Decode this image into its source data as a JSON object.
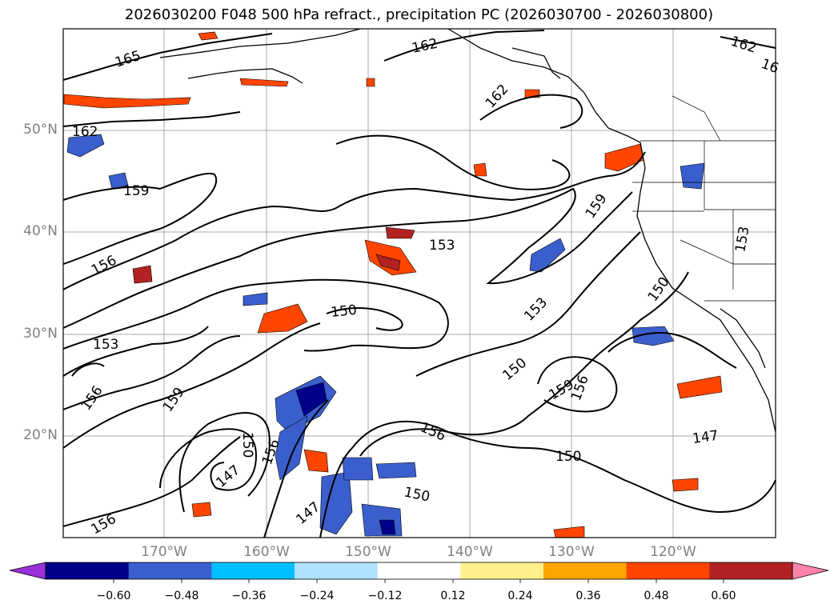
{
  "title": "2026030200 F048 500 hPa refract., precipitation PC (2026030700 - 2026030800)",
  "map": {
    "projection": "plate-carree",
    "lon_range": [
      -180,
      -110
    ],
    "lat_range": [
      10,
      60
    ],
    "gridlines": true,
    "lat_labels": [
      "50°N",
      "40°N",
      "30°N",
      "20°N"
    ],
    "lon_labels": [
      "170°W",
      "160°W",
      "150°W",
      "140°W",
      "130°W",
      "120°W"
    ],
    "contour_labels": [
      "165",
      "162",
      "162",
      "162",
      "16",
      "162",
      "159",
      "159",
      "153",
      "156",
      "153",
      "150",
      "153",
      "150",
      "153",
      "156",
      "159",
      "150",
      "159",
      "156",
      "156",
      "150",
      "147",
      "156",
      "147",
      "150",
      "150",
      "147",
      "156"
    ],
    "contour_color": "#000000",
    "features": [
      "coastlines",
      "country-borders",
      "state-borders"
    ]
  },
  "colorbar": {
    "orientation": "horizontal",
    "extend": "both",
    "tick_labels": [
      "−0.60",
      "−0.48",
      "−0.36",
      "−0.24",
      "−0.12",
      "0.12",
      "0.24",
      "0.36",
      "0.48",
      "0.60"
    ],
    "colors": [
      "#9b30d9",
      "#00008b",
      "#3a5fcd",
      "#00bfff",
      "#b0e2ff",
      "#ffffff",
      "#fff08a",
      "#ffa500",
      "#ff4500",
      "#b22222",
      "#ff82ab"
    ]
  }
}
